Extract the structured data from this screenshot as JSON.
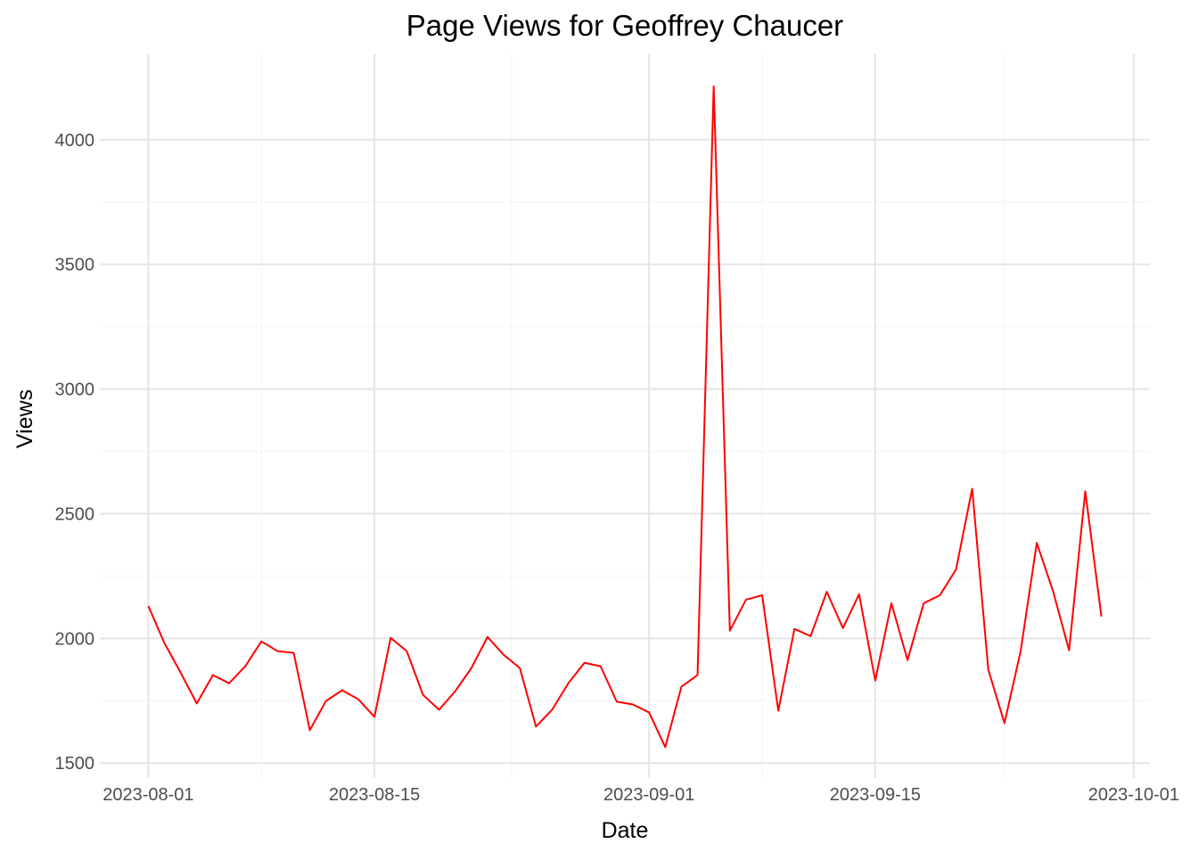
{
  "chart_data": {
    "type": "line",
    "title": "Page Views for Geoffrey Chaucer",
    "x_label": "Date",
    "y_label": "Views",
    "x": [
      "2023-08-01",
      "2023-08-02",
      "2023-08-03",
      "2023-08-04",
      "2023-08-05",
      "2023-08-06",
      "2023-08-07",
      "2023-08-08",
      "2023-08-09",
      "2023-08-10",
      "2023-08-11",
      "2023-08-12",
      "2023-08-13",
      "2023-08-14",
      "2023-08-15",
      "2023-08-16",
      "2023-08-17",
      "2023-08-18",
      "2023-08-19",
      "2023-08-20",
      "2023-08-21",
      "2023-08-22",
      "2023-08-23",
      "2023-08-24",
      "2023-08-25",
      "2023-08-26",
      "2023-08-27",
      "2023-08-28",
      "2023-08-29",
      "2023-08-30",
      "2023-08-31",
      "2023-09-01",
      "2023-09-02",
      "2023-09-03",
      "2023-09-04",
      "2023-09-05",
      "2023-09-06",
      "2023-09-07",
      "2023-09-08",
      "2023-09-09",
      "2023-09-10",
      "2023-09-11",
      "2023-09-12",
      "2023-09-13",
      "2023-09-14",
      "2023-09-15",
      "2023-09-16",
      "2023-09-17",
      "2023-09-18",
      "2023-09-19",
      "2023-09-20",
      "2023-09-21",
      "2023-09-22",
      "2023-09-23",
      "2023-09-24",
      "2023-09-25",
      "2023-09-26",
      "2023-09-27",
      "2023-09-28",
      "2023-09-29"
    ],
    "values": [
      2130,
      1981,
      1863,
      1739,
      1853,
      1820,
      1888,
      1988,
      1949,
      1942,
      1632,
      1749,
      1792,
      1756,
      1685,
      2002,
      1949,
      1774,
      1714,
      1788,
      1881,
      2006,
      1934,
      1881,
      1646,
      1714,
      1820,
      1902,
      1888,
      1746,
      1735,
      1703,
      1564,
      1806,
      1853,
      4214,
      2031,
      2155,
      2173,
      1710,
      2038,
      2009,
      2187,
      2041,
      2177,
      1831,
      2141,
      1913,
      2141,
      2173,
      2276,
      2600,
      1874,
      1660,
      1949,
      2383,
      2191,
      1952,
      2590,
      2088
    ],
    "color": "#ff0000",
    "xlim": [
      "2023-07-29",
      "2023-10-02"
    ],
    "xticks": [
      "2023-08-01",
      "2023-08-15",
      "2023-09-01",
      "2023-09-15",
      "2023-10-01"
    ],
    "ylim": [
      1440,
      4346
    ],
    "yticks": [
      1500,
      2000,
      2500,
      3000,
      3500,
      4000
    ],
    "grid": true,
    "minor_grid": true
  }
}
